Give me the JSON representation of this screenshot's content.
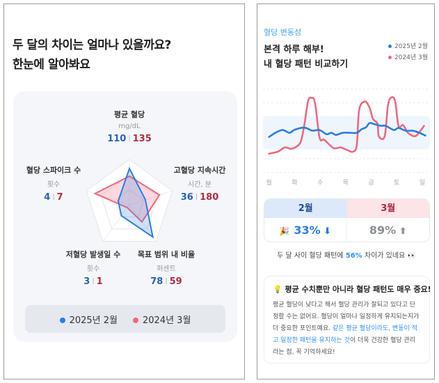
{
  "left": {
    "title_line1": "두 달의 차이는 얼마나 있을까요?",
    "title_line2": "한눈에 알아봐요",
    "radar": {
      "axes": [
        {
          "label": "평균 혈당",
          "unit": "mg/dL",
          "feb": "110",
          "mar": "135"
        },
        {
          "label": "고혈당 지속시간",
          "unit": "시간, 분",
          "feb": "36",
          "mar": "180"
        },
        {
          "label": "목표 범위 내 비율",
          "unit": "퍼센트",
          "feb": "78",
          "mar": "59"
        },
        {
          "label": "저혈당 발생일 수",
          "unit": "횟수",
          "feb": "3",
          "mar": "1"
        },
        {
          "label": "혈당 스파이크 수",
          "unit": "횟수",
          "feb": "4",
          "mar": "7"
        }
      ],
      "scores_feb": [
        0.8,
        0.37,
        0.88,
        0.3,
        0.26
      ],
      "scores_mar": [
        0.63,
        0.7,
        0.47,
        0.08,
        0.8
      ]
    },
    "legend": {
      "feb": "2025년 2월",
      "mar": "2024년 3월"
    }
  },
  "right": {
    "eyebrow": "혈당 변동성",
    "title_line1": "본격 하루 해부!",
    "title_line2": "내 혈당 패턴 비교하기",
    "legend": {
      "feb": "2025년 2월",
      "mar": "2024년 3월"
    },
    "days": [
      "월",
      "화",
      "수",
      "목",
      "금",
      "토",
      "일"
    ],
    "compare": {
      "feb_label": "2월",
      "mar_label": "3월",
      "feb_value": "33%",
      "mar_value": "89%"
    },
    "summary": {
      "before": "두 달 사이 혈당 패턴에 ",
      "highlight": "56%",
      "after": " 차이가 있네요"
    },
    "tip": {
      "title": "평균 수치뿐만 아니라 혈당 패턴도 매우 중요!",
      "body1": "평균 혈당이 낮다고 해서 혈당 관리가 잘되고 있다고 단정할 수는 없어요. 혈당이 얼마나 일정하게 유지되는지가 더 중요한 포인트예요. ",
      "highlight": "같은 평균 혈당이라도, 변동이 적고 일정한 패턴을 유지하는 것",
      "body2": "이 더욱 건강한 혈당 관리라는 점, 꼭 기억하세요!"
    }
  },
  "colors": {
    "feb": "#2a7de1",
    "mar": "#f0677f",
    "band": "#eef5fd",
    "accent": "#3aa0f0"
  },
  "chart_data": {
    "type": "line",
    "categories": [
      "월",
      "화",
      "수",
      "목",
      "금",
      "토",
      "일"
    ],
    "target_band": [
      13,
      61
    ],
    "grid": true,
    "legend_position": "top-right",
    "series": [
      {
        "name": "2025년 2월",
        "x": [
          0,
          0.25,
          0.53,
          0.8,
          0.98,
          1.25,
          1.44,
          1.71,
          1.98,
          2.25,
          2.44,
          2.62,
          2.89,
          3.16,
          3.44,
          3.62,
          3.8,
          3.94,
          4.16,
          4.39,
          4.57,
          4.89,
          5.07,
          5.35,
          5.62,
          5.89,
          6.12
        ],
        "y": [
          31,
          37,
          41,
          37,
          41,
          44,
          44,
          40,
          41,
          35,
          37,
          34,
          37,
          37,
          37,
          42,
          45,
          51,
          49,
          47,
          47,
          41,
          44,
          40,
          40,
          37,
          33
        ]
      },
      {
        "name": "2024년 3월",
        "x": [
          0,
          0.35,
          0.62,
          0.85,
          1.07,
          1.25,
          1.39,
          1.53,
          1.66,
          1.8,
          1.98,
          2.16,
          2.53,
          2.8,
          3.07,
          3.3,
          3.44,
          3.53,
          3.75,
          3.94,
          4.07,
          4.25,
          4.3,
          4.53,
          4.66,
          4.8,
          4.94,
          5.07,
          5.25,
          5.44,
          5.71,
          5.89,
          6.07
        ],
        "y": [
          7,
          10,
          16,
          14,
          17,
          25,
          50,
          83,
          87,
          80,
          30,
          27,
          15,
          16,
          12,
          10,
          20,
          70,
          82,
          73,
          57,
          50,
          32,
          32,
          77,
          88,
          82,
          47,
          48,
          37,
          32,
          38,
          47
        ]
      }
    ]
  }
}
